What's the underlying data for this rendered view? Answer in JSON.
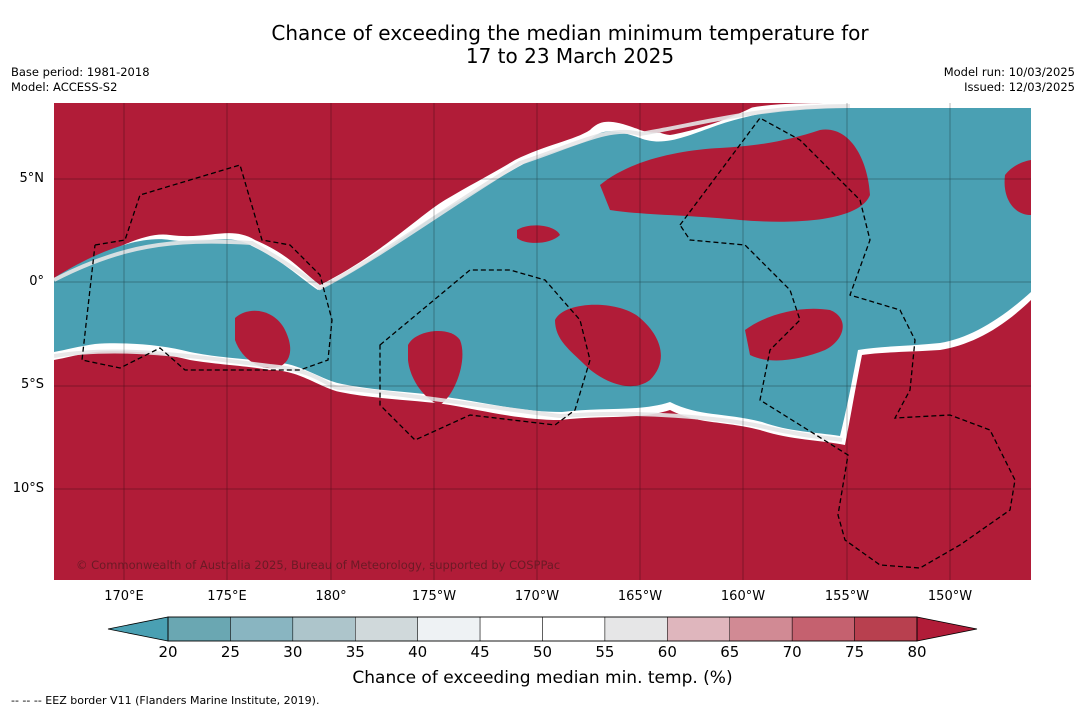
{
  "header": {
    "title_line1": "Chance of exceeding the median minimum temperature for",
    "title_line2": "17 to 23 March 2025",
    "base_period": "Base period: 1981-2018",
    "model": "Model: ACCESS-S2",
    "model_run": "Model run: 10/03/2025",
    "issued": "Issued: 12/03/2025"
  },
  "map": {
    "lat_labels": [
      "5°N",
      "0°",
      "5°S",
      "10°S"
    ],
    "lon_labels": [
      "170°E",
      "175°E",
      "180°",
      "175°W",
      "170°W",
      "165°W",
      "160°W",
      "155°W",
      "150°W"
    ],
    "copyright": "© Commonwealth of Australia 2025, Bureau of Meteorology, supported by COSPPac",
    "colors": {
      "high": "#b11c38",
      "low": "#4aa0b3",
      "neutral": "#ffffff"
    }
  },
  "colorbar": {
    "ticks": [
      "20",
      "25",
      "30",
      "35",
      "40",
      "45",
      "50",
      "55",
      "60",
      "65",
      "70",
      "75",
      "80"
    ],
    "colors": [
      "#6aa7b2",
      "#89b5c1",
      "#adc5cb",
      "#d0d9db",
      "#eef2f4",
      "#ffffff",
      "#ffffff",
      "#e6e6e7",
      "#dfb6bd",
      "#d18a94",
      "#c5616f",
      "#b8404f"
    ],
    "under_color": "#4aa0b3",
    "over_color": "#b11c38",
    "label": "Chance of exceeding median min. temp. (%)"
  },
  "footnote": "--  --  -- EEZ border V11 (Flanders Marine Institute, 2019)."
}
